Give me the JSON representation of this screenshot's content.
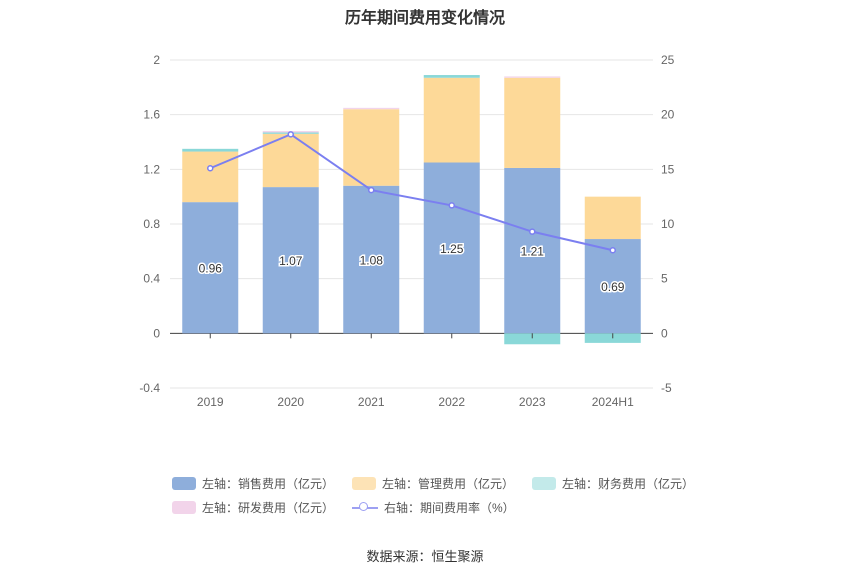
{
  "chart_data": {
    "type": "bar",
    "title": "历年期间费用变化情况",
    "categories": [
      "2019",
      "2020",
      "2021",
      "2022",
      "2023",
      "2024H1"
    ],
    "left_axis": {
      "ylim": [
        -0.4,
        2
      ],
      "ticks": [
        -0.4,
        0,
        0.4,
        0.8,
        1.2,
        1.6,
        2
      ]
    },
    "right_axis": {
      "ylim": [
        -5,
        25
      ],
      "ticks": [
        -5,
        0,
        5,
        10,
        15,
        20,
        25
      ]
    },
    "grid": true,
    "legend_position": "bottom",
    "series": [
      {
        "name": "左轴：销售费用（亿元）",
        "kind": "bar",
        "axis": "left",
        "color": "#8eaedb",
        "values": [
          0.96,
          1.07,
          1.08,
          1.25,
          1.21,
          0.69
        ],
        "labels": [
          "0.96",
          "1.07",
          "1.08",
          "1.25",
          "1.21",
          "0.69"
        ]
      },
      {
        "name": "左轴：管理费用（亿元）",
        "kind": "bar",
        "axis": "left",
        "color": "#fdd998",
        "values": [
          0.37,
          0.39,
          0.56,
          0.62,
          0.66,
          0.31
        ]
      },
      {
        "name": "左轴：财务费用（亿元）",
        "kind": "bar",
        "axis": "left",
        "color": "#8ad8d8",
        "values": [
          0.02,
          0.01,
          0.0,
          0.02,
          -0.08,
          -0.07
        ]
      },
      {
        "name": "左轴：研发费用（亿元）",
        "kind": "bar",
        "axis": "left",
        "color": "#f2d4ea",
        "values": [
          0.0,
          0.01,
          0.01,
          0.0,
          0.01,
          0.0
        ]
      },
      {
        "name": "右轴：期间费用率（%）",
        "kind": "line",
        "axis": "right",
        "color": "#7b7ff0",
        "values": [
          15.1,
          18.2,
          13.1,
          11.7,
          9.3,
          7.6
        ]
      }
    ]
  },
  "source_text": "数据来源：恒生聚源"
}
